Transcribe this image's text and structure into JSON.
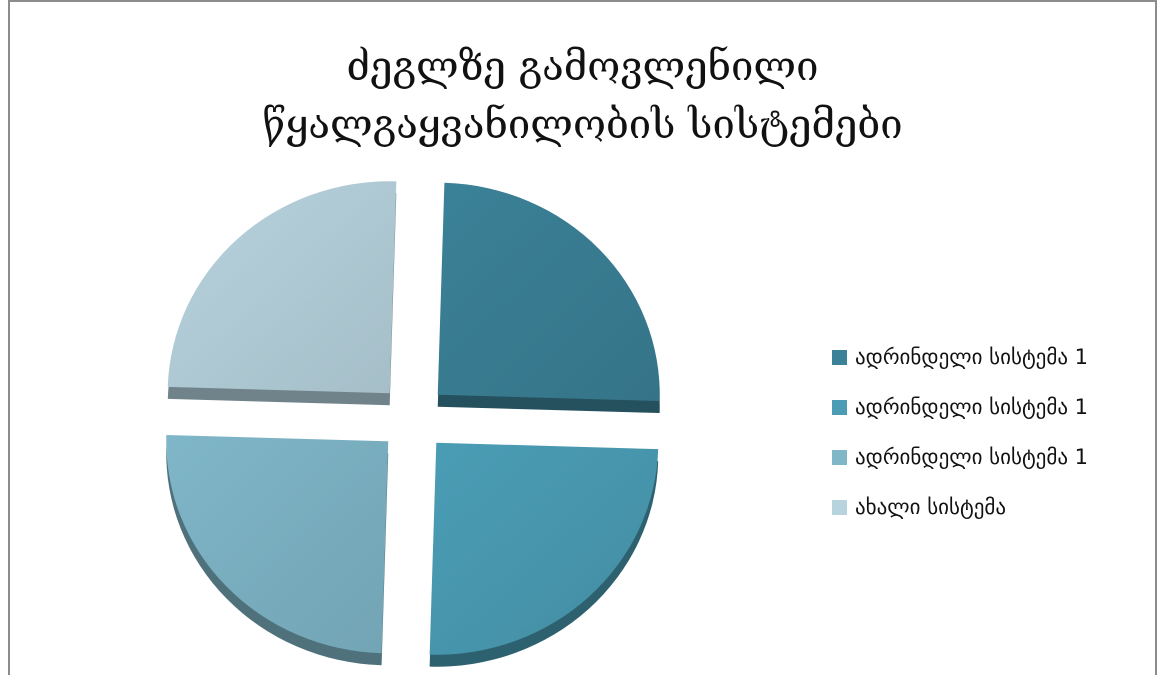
{
  "chart_data": {
    "type": "pie",
    "title": "ძეგლზე გამოვლენილი წყალგაყვანილობის სისტემები",
    "title_lines": [
      "ძეგლზე გამოვლენილი",
      "წყალგაყვანილობის სისტემები"
    ],
    "categories": [
      "ადრინდელი სისტემა 1",
      "ადრინდელი სისტემა 1",
      "ადრინდელი სისტემა 1",
      "ახალი სისტემა"
    ],
    "values": [
      25,
      25,
      25,
      25
    ],
    "colors": [
      "#3b8197",
      "#4a9db5",
      "#7fb6c8",
      "#b7d3de"
    ],
    "legend_position": "right",
    "style": "3d-exploded"
  }
}
